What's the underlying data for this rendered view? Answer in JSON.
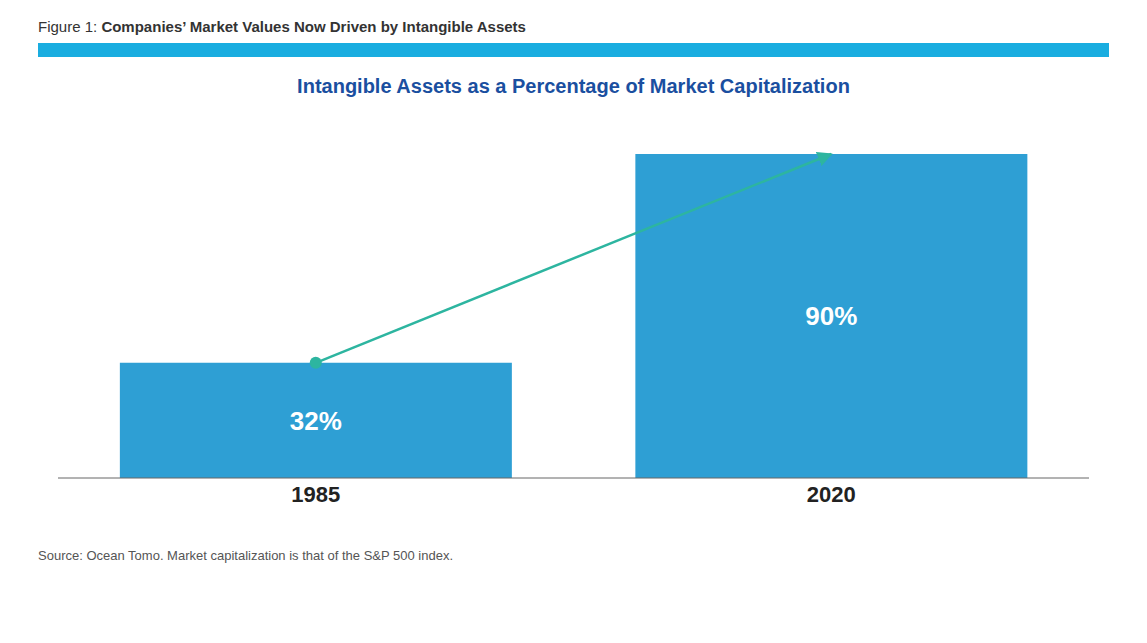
{
  "chart_data": {
    "type": "bar",
    "title": "Intangible Assets as a Percentage of Market Capitalization",
    "annotations": [
      "Figure 1:",
      "Companies’ Market Values Now Driven by Intangible Assets",
      "Source: Ocean Tomo. Market capitalization is that of the S&P 500 index."
    ],
    "categories": [
      "1985",
      "2020"
    ],
    "values": [
      32,
      90
    ],
    "value_labels": [
      "32%",
      "90%"
    ],
    "data_labels": true,
    "color": "#2E9FD4",
    "ylim": [
      0,
      100
    ],
    "tick_labels": "x",
    "grid": false
  }
}
